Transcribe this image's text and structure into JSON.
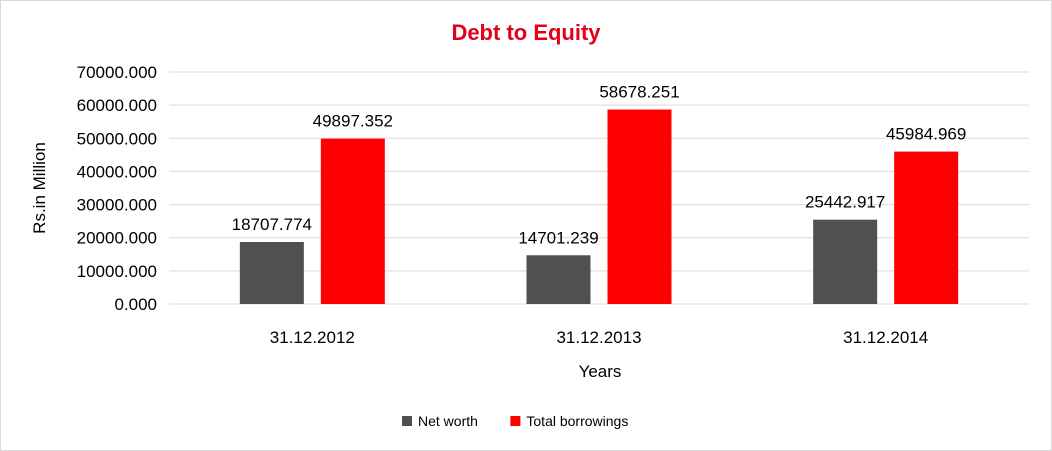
{
  "chart_data": {
    "type": "bar",
    "title": "Debt to Equity",
    "xlabel": "Years",
    "ylabel": "Rs.in Million",
    "categories": [
      "31.12.2012",
      "31.12.2013",
      "31.12.2014"
    ],
    "series": [
      {
        "name": "Net worth",
        "values": [
          18707.774,
          14701.239,
          25442.917
        ],
        "labels": [
          "18707.774",
          "14701.239",
          "25442.917"
        ],
        "color": "#505050"
      },
      {
        "name": "Total borrowings",
        "values": [
          49897.352,
          58678.251,
          45984.969
        ],
        "labels": [
          "49897.352",
          "58678.251",
          "45984.969"
        ],
        "color": "#ff0000"
      }
    ],
    "ylim": [
      0,
      70000
    ],
    "yticks": [
      0,
      10000,
      20000,
      30000,
      40000,
      50000,
      60000,
      70000
    ],
    "ytick_labels": [
      "0.000",
      "10000.000",
      "20000.000",
      "30000.000",
      "40000.000",
      "50000.000",
      "60000.000",
      "70000.000"
    ],
    "grid": true,
    "legend_position": "bottom",
    "title_color": "#e3001b"
  }
}
